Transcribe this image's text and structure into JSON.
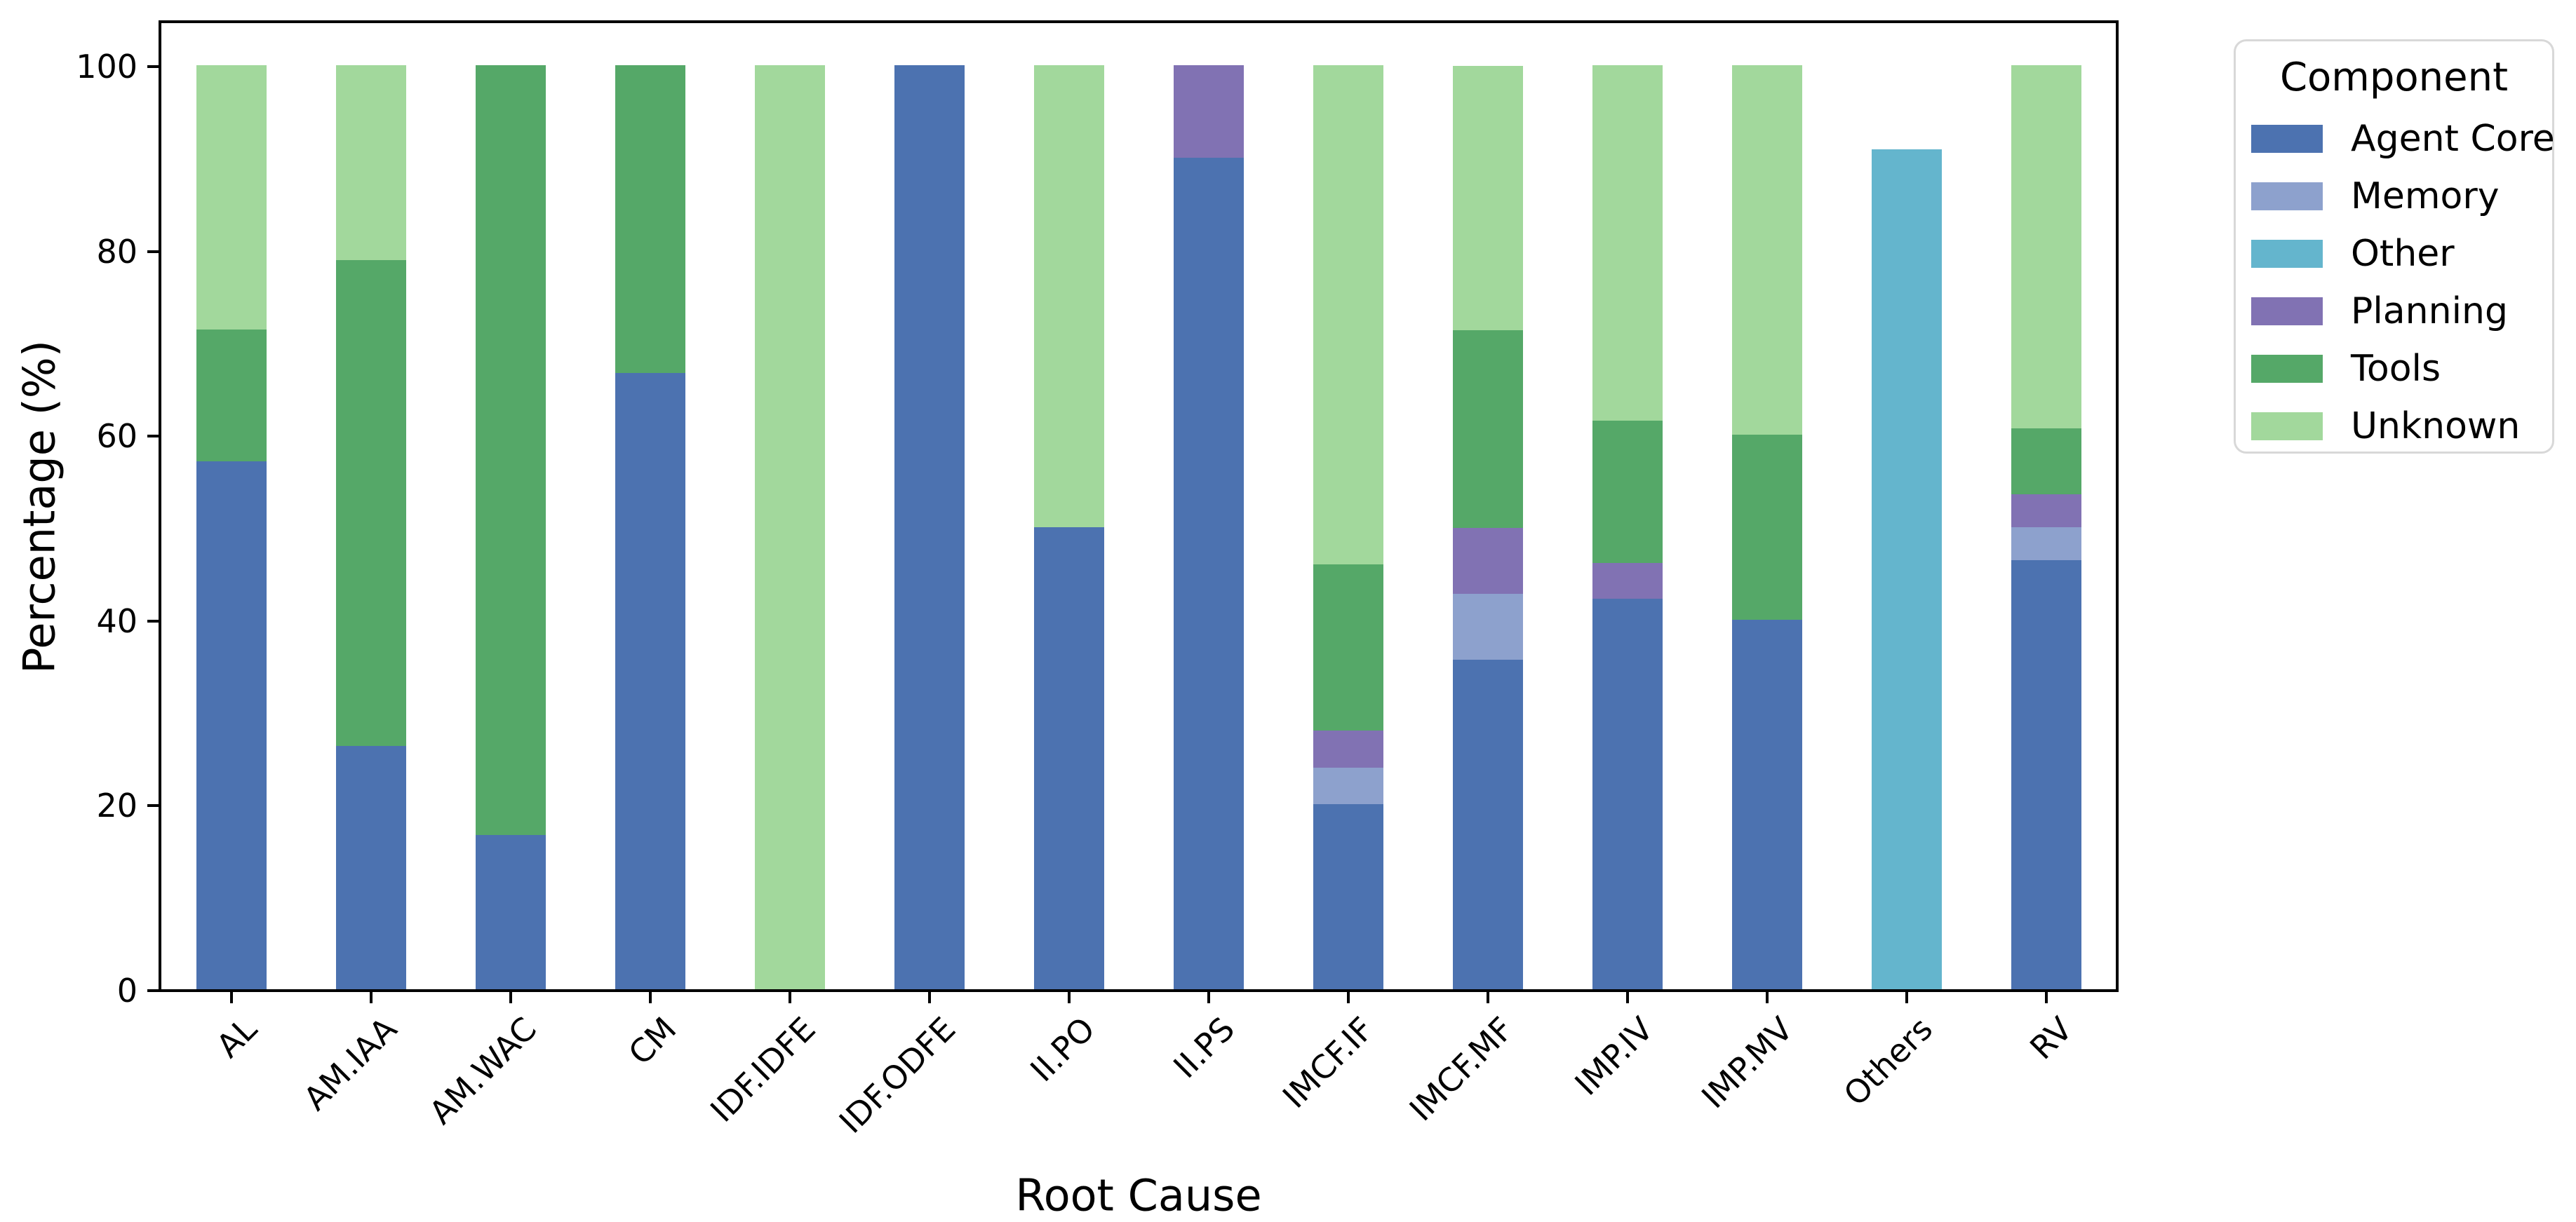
{
  "chart_data": {
    "type": "bar",
    "stacked": true,
    "orientation": "vertical",
    "title": "",
    "xlabel": "Root Cause",
    "ylabel": "Percentage (%)",
    "ylim": [
      0,
      100
    ],
    "yticks": [
      0,
      20,
      40,
      60,
      80,
      100
    ],
    "grid": false,
    "legend_title": "Component",
    "legend_position": "outside-right",
    "categories": [
      "AL",
      "AM.IAA",
      "AM.WAC",
      "CM",
      "IDF.IDFE",
      "IDF.ODFE",
      "II.PO",
      "II.PS",
      "IMCF.IF",
      "IMCF.MF",
      "IMP.IV",
      "IMP.MV",
      "Others",
      "RV"
    ],
    "series": [
      {
        "name": "Agent Core",
        "color": "#4c72b0",
        "values": [
          57.1,
          26.3,
          16.7,
          66.7,
          0,
          100,
          50,
          90,
          20,
          35.7,
          42.3,
          40,
          0,
          46.4
        ]
      },
      {
        "name": "Memory",
        "color": "#8da1cd",
        "values": [
          0,
          0,
          0,
          0,
          0,
          0,
          0,
          0,
          4,
          7.1,
          0,
          0,
          0,
          3.6
        ]
      },
      {
        "name": "Other",
        "color": "#64b5cd",
        "values": [
          0,
          0,
          0,
          0,
          0,
          0,
          0,
          0,
          0,
          0,
          0,
          0,
          90.9,
          0
        ]
      },
      {
        "name": "Planning",
        "color": "#8172b3",
        "values": [
          0,
          0,
          0,
          0,
          0,
          0,
          0,
          10,
          4,
          7.1,
          3.8,
          0,
          0,
          3.6
        ]
      },
      {
        "name": "Tools",
        "color": "#55a868",
        "values": [
          14.3,
          52.6,
          83.3,
          33.3,
          0,
          0,
          0,
          0,
          18,
          21.4,
          15.4,
          20,
          0,
          7.1
        ]
      },
      {
        "name": "Unknown",
        "color": "#a2d89c",
        "values": [
          28.6,
          21.1,
          0,
          0,
          100,
          0,
          50,
          0,
          54,
          28.6,
          38.5,
          40,
          0,
          39.3
        ]
      }
    ]
  }
}
